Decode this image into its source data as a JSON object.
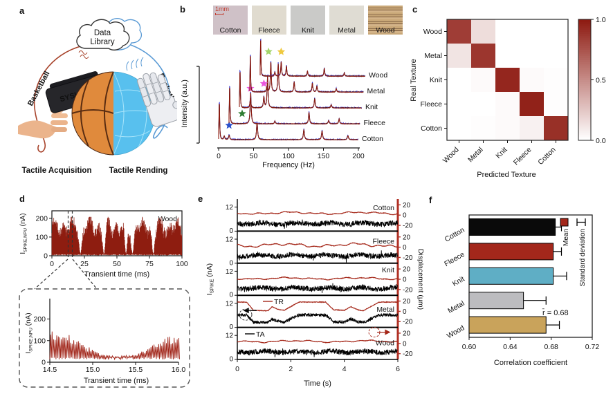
{
  "panels": {
    "a": {
      "letter": "a"
    },
    "b": {
      "letter": "b"
    },
    "c": {
      "letter": "c"
    },
    "d": {
      "letter": "d"
    },
    "e": {
      "letter": "e"
    },
    "f": {
      "letter": "f"
    }
  },
  "panel_a": {
    "cloud_line1": "Data",
    "cloud_line2": "Library",
    "left_wire_label": "Basketball",
    "right_wire_label": "Basketball",
    "device_label": "SYSU",
    "caption_left": "Tactile Acquisition",
    "caption_right": "Tactile Rending",
    "colors": {
      "caption_left": "#E0463A",
      "caption_right": "#82B4EA",
      "wire_left": "#A8442C",
      "wire_right": "#5B9BD5"
    }
  },
  "chart_data": [
    {
      "panel": "b",
      "type": "line",
      "name": "texture-frequency-spectra",
      "xlabel": "Frequency (Hz)",
      "ylabel": "Intensity (a.u.)",
      "xlim": [
        0,
        200
      ],
      "xticks": [
        0,
        50,
        100,
        150,
        200
      ],
      "scale_bar": "1mm",
      "textures": [
        {
          "label": "Cotton",
          "color": "#CFC1C7"
        },
        {
          "label": "Fleece",
          "color": "#E0DBCF"
        },
        {
          "label": "Knit",
          "color": "#CACAC8"
        },
        {
          "label": "Metal",
          "color": "#DFDCD3"
        },
        {
          "label": "Wood",
          "color": "#C09B72"
        }
      ],
      "trace_colors": [
        "#3A3AD6",
        "#151515",
        "#8E1D10"
      ],
      "series": [
        {
          "name": "Cotton",
          "peaks": [
            [
              1,
              1.0
            ],
            [
              8,
              0.1
            ],
            [
              15,
              0.13
            ],
            [
              55,
              0.5
            ],
            [
              122,
              0.3
            ],
            [
              148,
              0.26
            ],
            [
              185,
              0.12
            ]
          ],
          "stars": [
            {
              "x": 15,
              "color": "#2B50CC"
            }
          ]
        },
        {
          "name": "Fleece",
          "peaks": [
            [
              1,
              1.0
            ],
            [
              33,
              0.92
            ],
            [
              70,
              0.08
            ],
            [
              122,
              0.33
            ],
            [
              152,
              0.1
            ],
            [
              168,
              0.14
            ]
          ],
          "stars": [
            {
              "x": 20,
              "color": "#2E7D32"
            }
          ]
        },
        {
          "name": "Knit",
          "peaks": [
            [
              1,
              1.0
            ],
            [
              18,
              0.28
            ],
            [
              40,
              0.32
            ],
            [
              46,
              0.92
            ],
            [
              123,
              0.28
            ],
            [
              150,
              0.1
            ]
          ],
          "stars": [
            {
              "x": 18,
              "color": "#E957DE"
            },
            {
              "x": 40,
              "color": "#E957DE"
            }
          ]
        },
        {
          "name": "Metal",
          "peaks": [
            [
              1,
              1.0
            ],
            [
              30,
              0.14
            ],
            [
              37,
              0.88
            ],
            [
              50,
              0.82
            ],
            [
              78,
              0.3
            ],
            [
              110,
              0.26
            ],
            [
              118,
              0.18
            ],
            [
              152,
              0.1
            ]
          ],
          "stars": [
            {
              "x": 33,
              "color": "#A3D56A"
            }
          ]
        },
        {
          "name": "Wood",
          "peaks": [
            [
              1,
              1.0
            ],
            [
              28,
              0.12
            ],
            [
              40,
              0.42
            ],
            [
              50,
              0.3
            ],
            [
              90,
              0.15
            ],
            [
              122,
              0.24
            ],
            [
              160,
              0.1
            ]
          ],
          "stars": [
            {
              "x": 40,
              "color": "#EFC93F"
            }
          ]
        }
      ]
    },
    {
      "panel": "c",
      "type": "heatmap",
      "name": "texture-confusion-matrix",
      "xlabel": "Predicted Texture",
      "ylabel": "Real Texture",
      "rows": [
        "Wood",
        "Metal",
        "Knit",
        "Fleece",
        "Cotton"
      ],
      "cols": [
        "Wood",
        "Metal",
        "Knit",
        "Fleece",
        "Cotton"
      ],
      "values": [
        [
          0.85,
          0.15,
          0.0,
          0.0,
          0.0
        ],
        [
          0.12,
          0.88,
          0.0,
          0.0,
          0.0
        ],
        [
          0.0,
          0.02,
          0.95,
          0.02,
          0.01
        ],
        [
          0.0,
          0.0,
          0.02,
          0.97,
          0.01
        ],
        [
          0.0,
          0.01,
          0.02,
          0.06,
          0.91
        ]
      ],
      "colorbar": {
        "tick_labels": [
          "1.0",
          "0.5",
          "0.0"
        ],
        "min_color": "#FFFFFF",
        "max_color": "#8E1B12"
      }
    },
    {
      "panel": "d",
      "type": "line",
      "name": "npu-spike-current",
      "series_label": "Wood",
      "xlabel": "Transient time (ms)",
      "ylabel_parts": {
        "pre": "I",
        "sub": "SPIKE,NPU",
        "post": " (nA)"
      },
      "xlim": [
        0,
        100
      ],
      "xticks": [
        0,
        25,
        50,
        75,
        100
      ],
      "yticks": [
        0,
        100,
        200
      ],
      "ylim": [
        0,
        240
      ],
      "envelope_nA": [
        120,
        200
      ],
      "dips_ms": [
        22,
        40,
        57,
        62,
        78
      ],
      "trace_color": "#8E1D10"
    },
    {
      "panel": "d-inset",
      "type": "line",
      "name": "npu-spike-current-zoom",
      "xlabel": "Transient time (ms)",
      "ylabel_parts": {
        "pre": "I",
        "sub": "SPIKE,NPU",
        "post": " (nA)"
      },
      "xlim": [
        14.5,
        16.0
      ],
      "xtick_labels": [
        "14.5",
        "15.0",
        "15.5",
        "16.0"
      ],
      "yticks": [
        0,
        100,
        200
      ],
      "spike_period_ms": 0.018,
      "envelope_points": [
        [
          14.5,
          130
        ],
        [
          14.75,
          85
        ],
        [
          14.95,
          45
        ],
        [
          15.1,
          18
        ],
        [
          15.3,
          12
        ],
        [
          15.5,
          20
        ],
        [
          15.7,
          55
        ],
        [
          15.85,
          80
        ],
        [
          16.0,
          100
        ]
      ],
      "trace_color": "#A02418"
    },
    {
      "panel": "e",
      "type": "line",
      "name": "tactile-rendering-traces",
      "xlabel": "Time (s)",
      "xlim": [
        0,
        6
      ],
      "xticks": [
        0,
        2,
        4,
        6
      ],
      "ylabel_left_parts": {
        "pre": "I",
        "sub": "SPIKE",
        "post": " (nA)"
      },
      "ylabel_right": "Displacement (μm)",
      "left_ticks": [
        12,
        0
      ],
      "right_ticks": [
        20,
        0,
        -20
      ],
      "legend": {
        "tr": "TR",
        "ta": "TA"
      },
      "colors": {
        "tr": "#A5281A",
        "ta": "#000000",
        "right_axis": "#B03024"
      },
      "subplots": [
        {
          "name": "Cotton",
          "tr_mean": 5,
          "tr_amp": 6,
          "ta_mean": 3.8,
          "seed": 11
        },
        {
          "name": "Fleece",
          "tr_mean": 5,
          "tr_amp": 9,
          "ta_mean": 3.8,
          "seed": 22
        },
        {
          "name": "Knit",
          "tr_mean": 2,
          "tr_amp": 5,
          "ta_mean": 3.5,
          "seed": 33
        },
        {
          "name": "Metal",
          "ta_mean": 5,
          "seed": 44,
          "tr_steps": [
            [
              0,
              18
            ],
            [
              0.35,
              18
            ],
            [
              0.6,
              2
            ],
            [
              1.15,
              1
            ],
            [
              1.3,
              9
            ],
            [
              1.5,
              4
            ],
            [
              1.75,
              2
            ],
            [
              2.3,
              18
            ],
            [
              3.3,
              18
            ],
            [
              3.6,
              3
            ],
            [
              4.0,
              2
            ],
            [
              4.25,
              9
            ],
            [
              4.5,
              3
            ],
            [
              4.7,
              1
            ],
            [
              5.3,
              18
            ],
            [
              6,
              18
            ]
          ]
        },
        {
          "name": "Wood",
          "tr_mean": 5,
          "tr_amp": 5,
          "ta_mean": 3.8,
          "seed": 55
        }
      ]
    },
    {
      "panel": "f",
      "type": "bar",
      "name": "correlation-coefficients",
      "categories": [
        "Cotton",
        "Fleece",
        "Knit",
        "Metal",
        "Wood"
      ],
      "values": [
        0.684,
        0.682,
        0.682,
        0.653,
        0.675
      ],
      "errors": [
        0.006,
        0.008,
        0.013,
        0.022,
        0.013
      ],
      "bar_colors": [
        "#0A0A0A",
        "#A3271B",
        "#5FAEC5",
        "#BCBCBF",
        "#C9A35B"
      ],
      "xlabel": "Correlation coefficient",
      "xlim": [
        0.6,
        0.72
      ],
      "xtick_labels": [
        "0.60",
        "0.64",
        "0.68",
        "0.72"
      ],
      "legend": {
        "mean": "Mean",
        "sd": "Standard deviation",
        "mean_color": "#A3271B"
      },
      "annotation": "r̄ = 0.68"
    }
  ]
}
